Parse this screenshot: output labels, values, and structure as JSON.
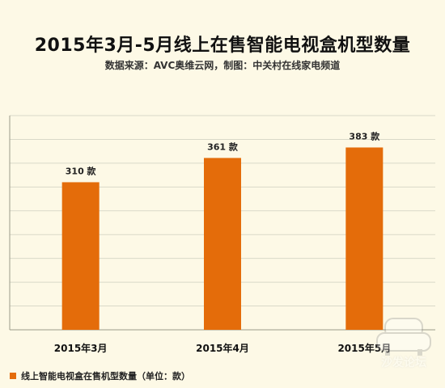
{
  "title": "2015年3月-5月线上在售智能电视盒机型数量",
  "subtitle": "数据来源：AVC奥维云网，制图：中关村在线家电频道",
  "colors": {
    "bar": "#e46c0a",
    "background": "#fdf9e6",
    "grid": "#d9d9c8"
  },
  "legend": {
    "label": "线上智能电视盒在售机型数量（单位：款）"
  },
  "watermark": {
    "icon": "sofa-icon",
    "text": "沙发论坛"
  },
  "chart_data": {
    "type": "bar",
    "categories": [
      "2015年3月",
      "2015年4月",
      "2015年5月"
    ],
    "series": [
      {
        "name": "线上智能电视盒在售机型数量（单位：款）",
        "values": [
          310,
          361,
          383
        ],
        "data_labels": [
          "310 款",
          "361 款",
          "383 款"
        ]
      }
    ],
    "ylim": [
      0,
      450
    ],
    "grid": true,
    "legend_position": "bottom-left"
  }
}
